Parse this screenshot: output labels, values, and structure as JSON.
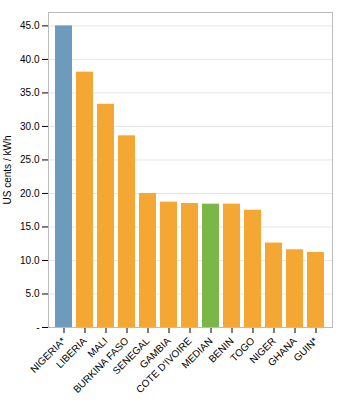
{
  "chart_data": {
    "type": "bar",
    "categories": [
      "NIGERIA*",
      "LIBERIA",
      "MALI",
      "BURKINA FASO",
      "SENEGAL",
      "GAMBIA",
      "COTE D'IVOIRE",
      "MEDIAN",
      "BENIN",
      "TOGO",
      "NIGER",
      "GHANA",
      "GUIN*"
    ],
    "values": [
      45.0,
      38.1,
      33.3,
      28.6,
      20.0,
      18.7,
      18.5,
      18.4,
      18.4,
      17.5,
      12.6,
      11.6,
      11.2
    ],
    "colors": [
      "#6e9abb",
      "#f5a733",
      "#f5a733",
      "#f5a733",
      "#f5a733",
      "#f5a733",
      "#f5a733",
      "#7ab648",
      "#f5a733",
      "#f5a733",
      "#f5a733",
      "#f5a733",
      "#f5a733"
    ],
    "ylabel": "US cents / kWh",
    "ylim": [
      0,
      47
    ],
    "yticks": [
      {
        "value": 0,
        "label": "-"
      },
      {
        "value": 5,
        "label": "5.0"
      },
      {
        "value": 10,
        "label": "10.0"
      },
      {
        "value": 15,
        "label": "15.0"
      },
      {
        "value": 20,
        "label": "20.0"
      },
      {
        "value": 25,
        "label": "25.0"
      },
      {
        "value": 30,
        "label": "30.0"
      },
      {
        "value": 35,
        "label": "35.0"
      },
      {
        "value": 40,
        "label": "40.0"
      },
      {
        "value": 45,
        "label": "45.0"
      }
    ],
    "grid": true
  }
}
